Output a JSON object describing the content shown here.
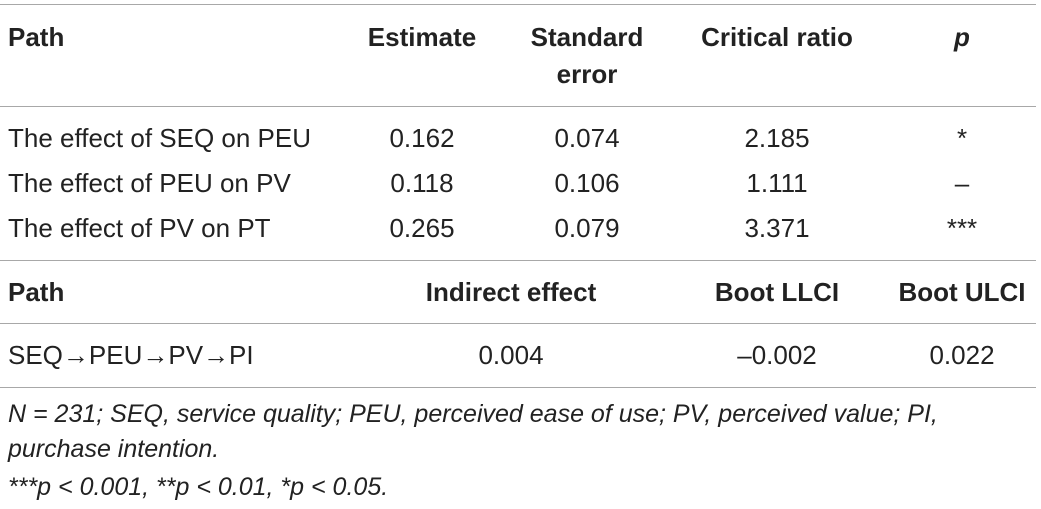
{
  "table1": {
    "headers": {
      "path": "Path",
      "estimate": "Estimate",
      "se_line1": "Standard",
      "se_line2": "error",
      "cr": "Critical ratio",
      "p": "p"
    },
    "rows": [
      {
        "path": "The effect of SEQ on PEU",
        "estimate": "0.162",
        "se": "0.074",
        "cr": "2.185",
        "p": "*"
      },
      {
        "path": "The effect of PEU on PV",
        "estimate": "0.118",
        "se": "0.106",
        "cr": "1.111",
        "p": "–"
      },
      {
        "path": "The effect of PV on PT",
        "estimate": "0.265",
        "se": "0.079",
        "cr": "3.371",
        "p": "***"
      }
    ]
  },
  "table2": {
    "headers": {
      "path": "Path",
      "indirect": "Indirect effect",
      "llci": "Boot LLCI",
      "ulci": "Boot ULCI"
    },
    "rows": [
      {
        "path": "SEQ→PEU→PV→PI",
        "indirect": "0.004",
        "llci": "–0.002",
        "ulci": "0.022"
      }
    ]
  },
  "notes": {
    "line1": "N = 231; SEQ, service quality; PEU, perceived ease of use; PV, perceived value; PI,",
    "line2": "purchase intention.",
    "line3": "***p < 0.001, **p < 0.01, *p < 0.05."
  }
}
